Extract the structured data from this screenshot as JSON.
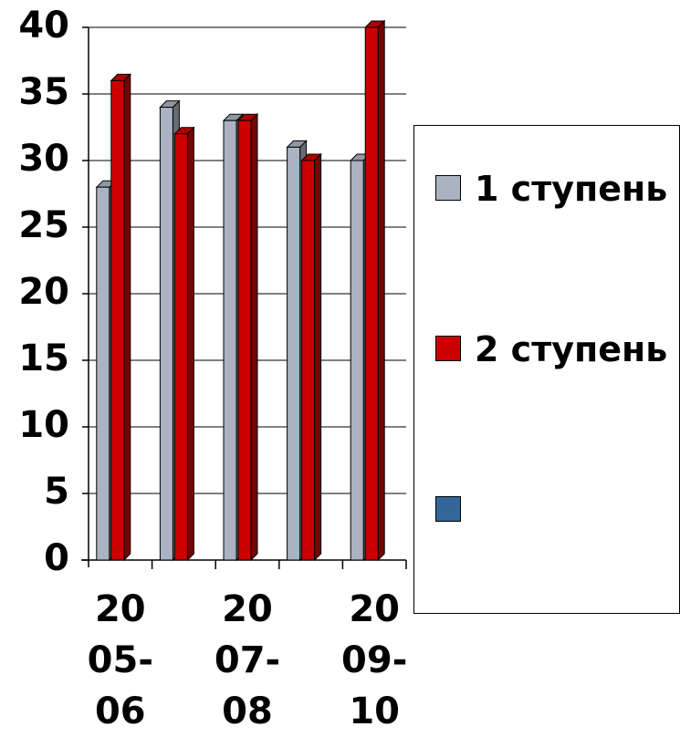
{
  "chart_data": {
    "type": "bar3d",
    "categories": [
      "20\n05-\n06",
      null,
      "20\n07-\n08",
      null,
      "20\n09-\n10"
    ],
    "series": [
      {
        "name": "1 ступень",
        "color": "#a9b3c1",
        "values": [
          28,
          34,
          33,
          31,
          30
        ]
      },
      {
        "name": "2 ступень",
        "color": "#cc0000",
        "values": [
          36,
          32,
          33,
          30,
          40
        ]
      },
      {
        "color": "#336699",
        "values": [
          null,
          null,
          null,
          null,
          null
        ]
      }
    ],
    "ylim": [
      0,
      40
    ],
    "yticks": [
      0,
      5,
      10,
      15,
      20,
      25,
      30,
      35,
      40
    ],
    "grid": true,
    "legend": "right"
  }
}
